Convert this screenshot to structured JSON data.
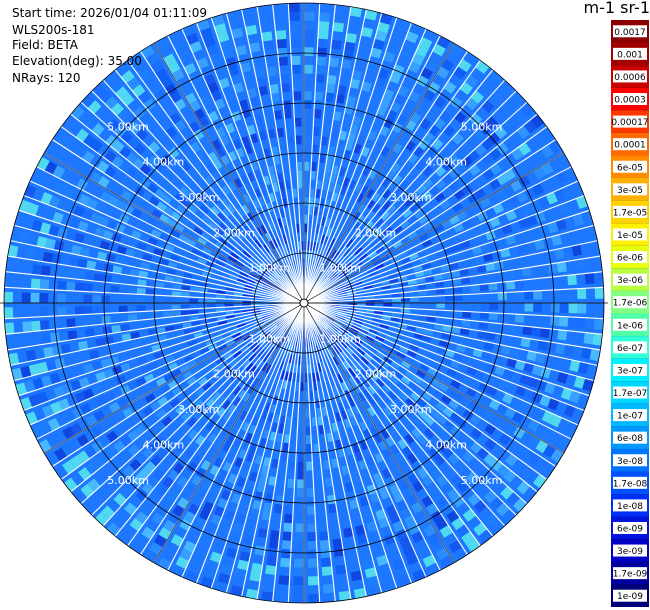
{
  "info": {
    "start_time": "Start time: 2026/01/04 01:11:09",
    "instrument": "WLS200s-181",
    "field": "Field: BETA",
    "elevation": "Elevation(deg): 35.00",
    "nrays": "NRays: 120"
  },
  "colorbar": {
    "units_label": "m-1 sr-1",
    "labels": [
      "0.0017",
      "0.001",
      "0.0006",
      "0.0003",
      "0.00017",
      "0.0001",
      "6e-05",
      "3e-05",
      "1.7e-05",
      "1e-05",
      "6e-06",
      "3e-06",
      "1.7e-06",
      "1e-06",
      "6e-07",
      "3e-07",
      "1.7e-07",
      "1e-07",
      "6e-08",
      "3e-08",
      "1.7e-08",
      "1e-08",
      "6e-09",
      "3e-09",
      "1.7e-09",
      "1e-09"
    ],
    "colors": [
      "#8b0000",
      "#a30000",
      "#c80000",
      "#ff0000",
      "#ff3a00",
      "#ff6a00",
      "#ff8c00",
      "#ffb000",
      "#ffd200",
      "#ffef00",
      "#e8ff10",
      "#b8ff40",
      "#80ff80",
      "#50ffa8",
      "#30ffd8",
      "#00f0ff",
      "#00d8ff",
      "#00b8ff",
      "#0098ff",
      "#0074ff",
      "#0050ff",
      "#0030f8",
      "#0014e0",
      "#0000c8",
      "#0000a0",
      "#000078"
    ]
  },
  "chart_data": {
    "type": "heatmap",
    "subtype": "ppi-polar",
    "field": "BETA",
    "elevation_deg": 35.0,
    "n_rays": 120,
    "range_rings_km": [
      1.0,
      2.0,
      3.0,
      4.0,
      5.0
    ],
    "ring_labels": [
      "1.00km",
      "2.00km",
      "3.00km",
      "4.00km",
      "5.00km"
    ],
    "max_range_km": 6.0,
    "value_range": [
      1e-09,
      0.0017
    ],
    "dominant_value": 3e-08,
    "scale": "log",
    "grid": true
  }
}
